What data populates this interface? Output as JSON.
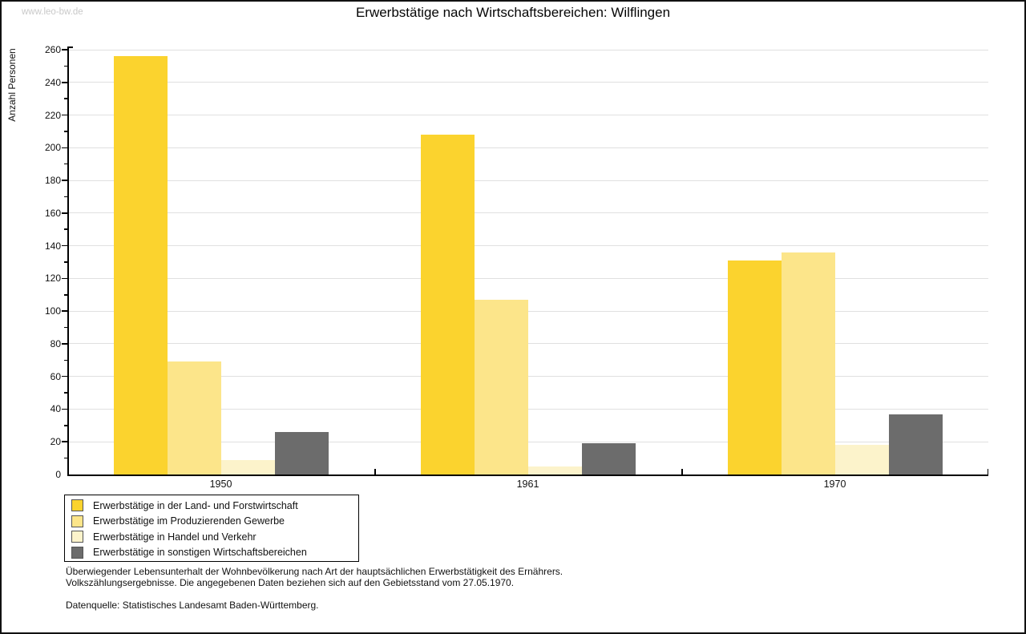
{
  "watermark": "www.leo-bw.de",
  "title": "Erwerbstätige nach Wirtschaftsbereichen: Wilflingen",
  "chart_data": {
    "type": "bar",
    "title": "Erwerbstätige nach Wirtschaftsbereichen: Wilflingen",
    "xlabel": "",
    "ylabel": "Anzahl Personen",
    "categories": [
      "1950",
      "1961",
      "1970"
    ],
    "series": [
      {
        "name": "Erwerbstätige in der Land- und Forstwirtschaft",
        "color": "#fbd32e",
        "values": [
          256,
          208,
          131
        ]
      },
      {
        "name": "Erwerbstätige im Produzierenden Gewerbe",
        "color": "#fce58a",
        "values": [
          69,
          107,
          136
        ]
      },
      {
        "name": "Erwerbstätige in Handel und Verkehr",
        "color": "#fcf3cb",
        "values": [
          9,
          5,
          18
        ]
      },
      {
        "name": "Erwerbstätige in sonstigen Wirtschaftsbereichen",
        "color": "#6c6c6c",
        "values": [
          26,
          19,
          37
        ]
      }
    ],
    "ylim": [
      0,
      260
    ],
    "ytick_step": 20,
    "ytick_minor_step": 10,
    "grid": true,
    "legend_position": "bottom-left"
  },
  "footer": {
    "line1": "Überwiegender Lebensunterhalt der Wohnbevölkerung nach Art der hauptsächlichen Erwerbstätigkeit des Ernährers.",
    "line2": "Volkszählungsergebnisse. Die angegebenen Daten beziehen sich auf den Gebietsstand vom 27.05.1970.",
    "source": "Datenquelle: Statistisches Landesamt Baden-Württemberg."
  },
  "colors": {
    "grid": "#e0e0e0",
    "axis": "#000000",
    "watermark": "#c9c9c9"
  }
}
